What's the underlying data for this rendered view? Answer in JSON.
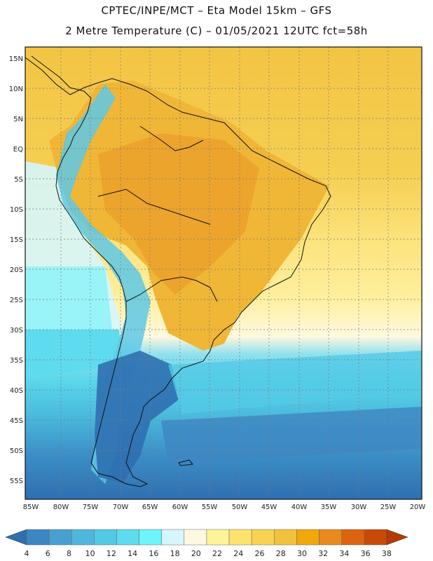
{
  "header": {
    "line1": "CPTEC/INPE/MCT –  Eta Model 15km – GFS",
    "line2": "2 Metre Temperature (C) – 01/05/2021 12UTC fct=58h"
  },
  "map": {
    "lat_labels": [
      "15N",
      "10N",
      "5N",
      "EQ",
      "5S",
      "10S",
      "15S",
      "20S",
      "25S",
      "30S",
      "35S",
      "40S",
      "45S",
      "50S",
      "55S"
    ],
    "lon_labels": [
      "85W",
      "80W",
      "75W",
      "70W",
      "65W",
      "60W",
      "55W",
      "50W",
      "45W",
      "40W",
      "35W",
      "30W",
      "25W",
      "20W"
    ]
  },
  "colorbar": {
    "labels": [
      "4",
      "6",
      "8",
      "10",
      "12",
      "14",
      "16",
      "18",
      "20",
      "22",
      "24",
      "26",
      "28",
      "30",
      "32",
      "34",
      "36",
      "38"
    ],
    "colors": [
      "#2f6fb0",
      "#3e86c2",
      "#47a0cf",
      "#4fb7dc",
      "#54c9e6",
      "#5edbef",
      "#6ef4fb",
      "#d6f6fb",
      "#fff8e0",
      "#fff39a",
      "#fde36e",
      "#f8d352",
      "#f1c23e",
      "#f0a80a",
      "#e88a1e",
      "#dc6410",
      "#c84a08",
      "#b53a06"
    ]
  }
}
